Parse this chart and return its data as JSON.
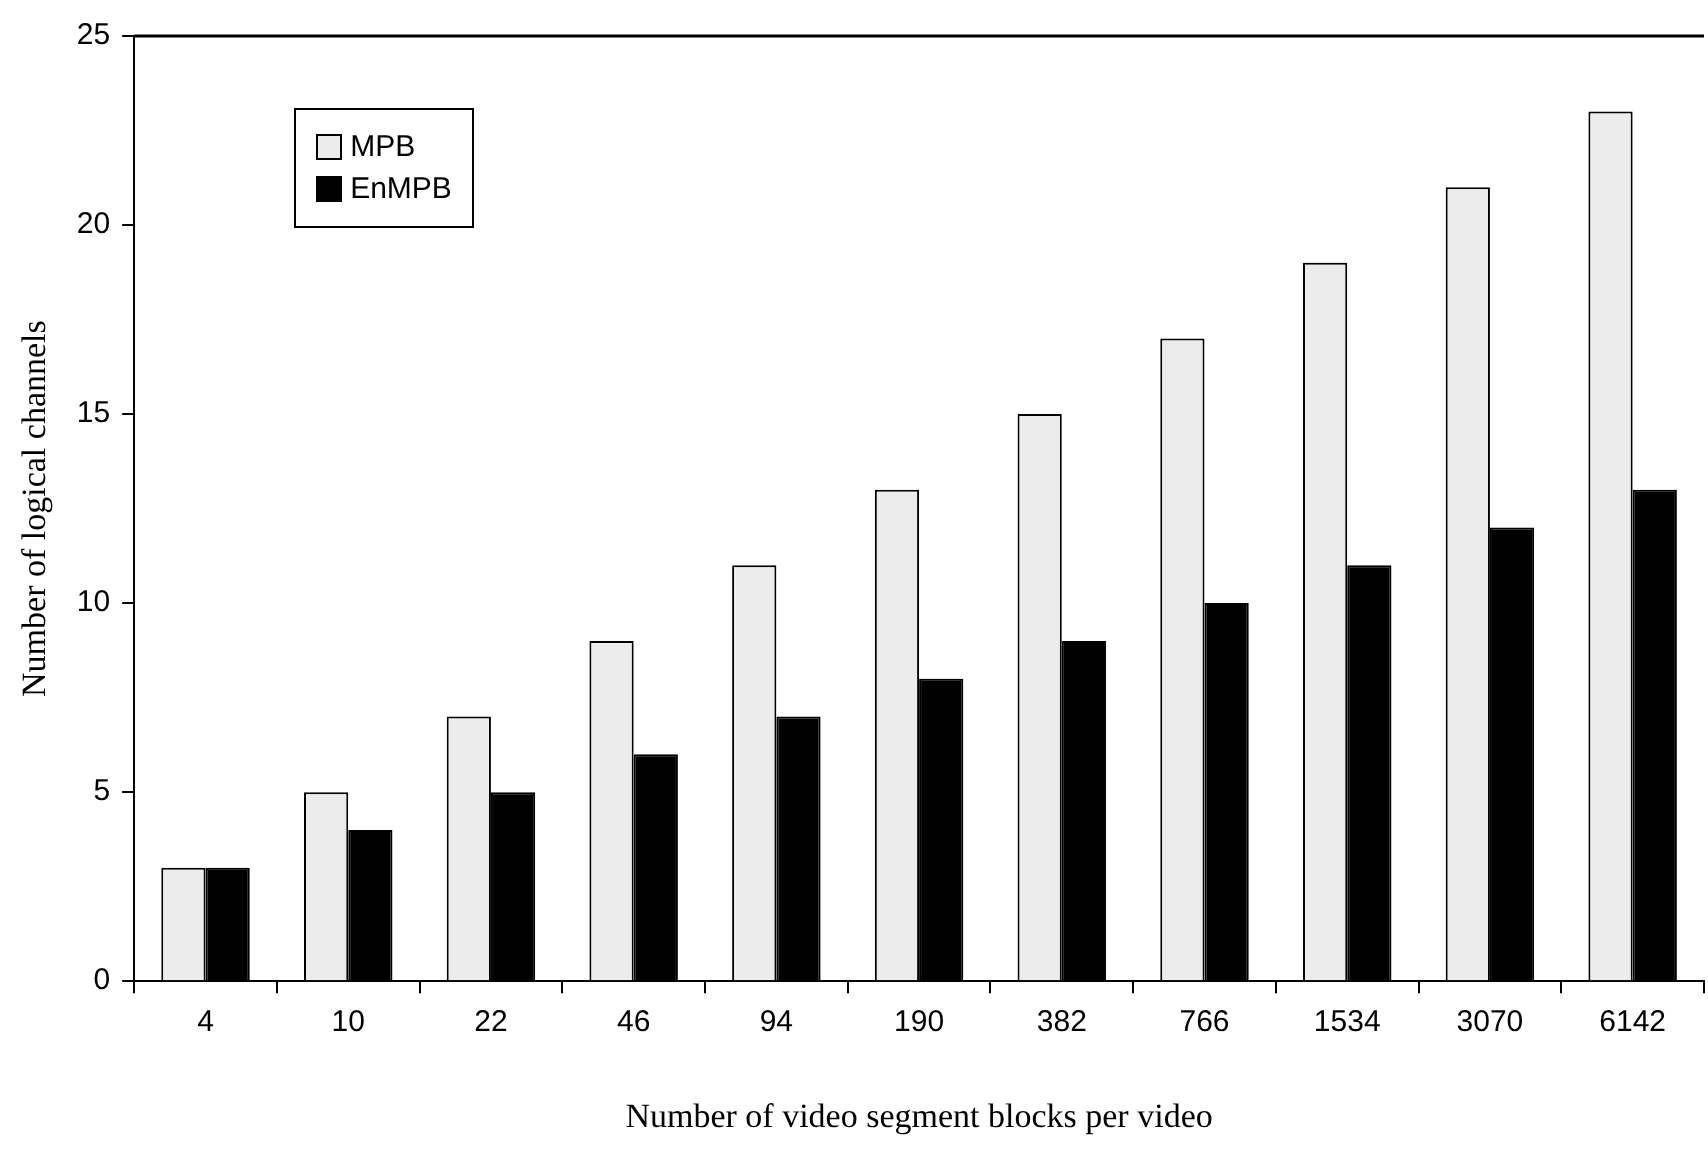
{
  "chart_data": {
    "type": "bar",
    "xlabel": "Number of video segment blocks per video",
    "ylabel": "Number of logical channels",
    "categories": [
      "4",
      "10",
      "22",
      "46",
      "94",
      "190",
      "382",
      "766",
      "1534",
      "3070",
      "6142"
    ],
    "series": [
      {
        "name": "MPB",
        "color": "#ececec",
        "values": [
          3,
          5,
          7,
          9,
          11,
          13,
          15,
          17,
          19,
          21,
          23
        ]
      },
      {
        "name": "EnMPB",
        "color": "#000000",
        "values": [
          3,
          4,
          5,
          6,
          7,
          8,
          9,
          10,
          11,
          12,
          13
        ]
      }
    ],
    "ylim": [
      0,
      25
    ],
    "yticks": [
      0,
      5,
      10,
      15,
      20,
      25
    ],
    "grid": false,
    "legend": "top left"
  }
}
